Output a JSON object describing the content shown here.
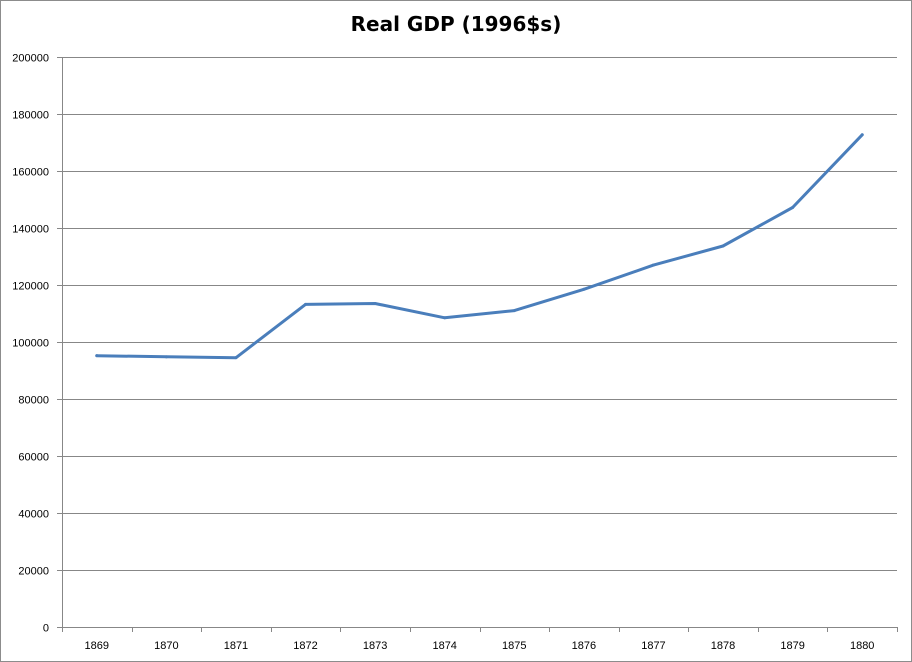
{
  "chart_data": {
    "type": "line",
    "title": "Real GDP (1996$s)",
    "xlabel": "",
    "ylabel": "",
    "categories": [
      "1869",
      "1870",
      "1871",
      "1872",
      "1873",
      "1874",
      "1875",
      "1876",
      "1877",
      "1878",
      "1879",
      "1880"
    ],
    "series": [
      {
        "values": [
          95200,
          94800,
          94500,
          113200,
          113500,
          108500,
          111000,
          118500,
          127000,
          133700,
          147200,
          172700
        ],
        "color": "#4a7ebb"
      }
    ],
    "ylim": [
      0,
      200000
    ],
    "yticks": [
      0,
      20000,
      40000,
      60000,
      80000,
      100000,
      120000,
      140000,
      160000,
      180000,
      200000
    ],
    "grid": true,
    "gridline_color": "#878787",
    "legend": "none"
  }
}
